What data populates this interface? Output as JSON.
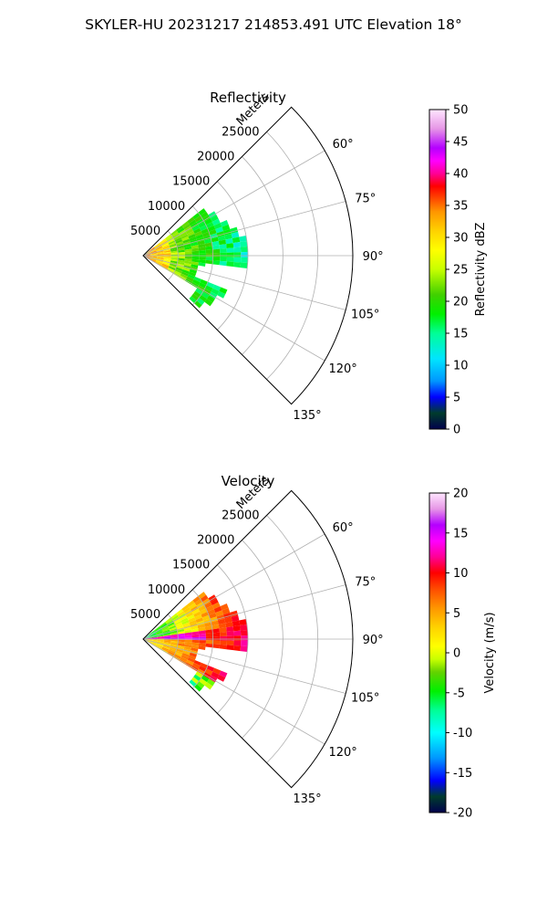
{
  "figure": {
    "suptitle": "SKYLER-HU  20231217  214853.491 UTC Elevation 18°"
  },
  "chart_data": [
    {
      "type": "heatmap",
      "projection": "polar-sector",
      "title": "Reflectivity",
      "radial_label": "Meters",
      "radial_ticks": [
        5000,
        10000,
        15000,
        20000,
        25000
      ],
      "radial_tick_labels": [
        "5000",
        "10000",
        "15000",
        "20000",
        "25000"
      ],
      "rlim": [
        0,
        30000
      ],
      "theta_ticks_deg": [
        60,
        75,
        90,
        105,
        120,
        135
      ],
      "theta_tick_labels": [
        "60°",
        "75°",
        "90°",
        "105°",
        "120°",
        "135°"
      ],
      "theta_range_deg": [
        45,
        135
      ],
      "grid": true,
      "colorbar": {
        "label": "Reflectivity dBZ",
        "range": [
          0,
          50
        ],
        "ticks": [
          0,
          5,
          10,
          15,
          20,
          25,
          30,
          35,
          40,
          45,
          50
        ],
        "tick_labels": [
          "0",
          "5",
          "10",
          "15",
          "20",
          "25",
          "30",
          "35",
          "40",
          "45",
          "50"
        ]
      },
      "data_extent": {
        "azimuth_deg": [
          52,
          133
        ],
        "range_m": [
          0,
          15000
        ],
        "value_range": [
          5,
          40
        ]
      }
    },
    {
      "type": "heatmap",
      "projection": "polar-sector",
      "title": "Velocity",
      "radial_label": "Meters",
      "radial_ticks": [
        5000,
        10000,
        15000,
        20000,
        25000
      ],
      "radial_tick_labels": [
        "5000",
        "10000",
        "15000",
        "20000",
        "25000"
      ],
      "rlim": [
        0,
        30000
      ],
      "theta_ticks_deg": [
        60,
        75,
        90,
        105,
        120,
        135
      ],
      "theta_tick_labels": [
        "60°",
        "75°",
        "90°",
        "105°",
        "120°",
        "135°"
      ],
      "theta_range_deg": [
        45,
        135
      ],
      "grid": true,
      "colorbar": {
        "label": "Velocity (m/s)",
        "range": [
          -20,
          20
        ],
        "ticks": [
          -20,
          -15,
          -10,
          -5,
          0,
          5,
          10,
          15,
          20
        ],
        "tick_labels": [
          "-20",
          "-15",
          "-10",
          "-5",
          "0",
          "5",
          "10",
          "15",
          "20"
        ]
      },
      "data_extent": {
        "azimuth_deg": [
          52,
          133
        ],
        "range_m": [
          0,
          15000
        ],
        "value_range": [
          -15,
          18
        ]
      }
    }
  ]
}
